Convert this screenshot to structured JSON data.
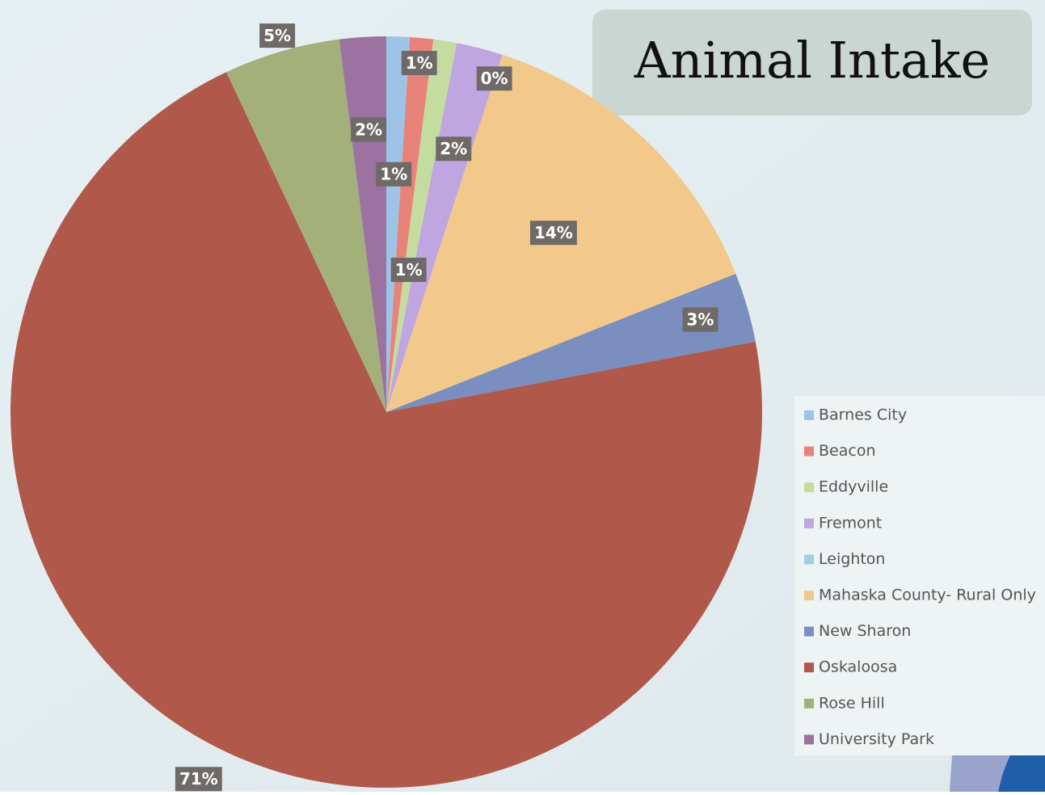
{
  "chart_data": {
    "type": "pie",
    "title": "Animal Intake",
    "categories": [
      "Barnes City",
      "Beacon",
      "Eddyville",
      "Fremont",
      "Leighton",
      "Mahaska County- Rural Only",
      "New Sharon",
      "Oskaloosa",
      "Rose Hill",
      "University Park"
    ],
    "values": [
      1,
      1,
      1,
      2,
      0,
      14,
      3,
      71,
      5,
      2
    ],
    "value_labels": [
      "1%",
      "1%",
      "1%",
      "2%",
      "0%",
      "14%",
      "3%",
      "71%",
      "5%",
      "2%"
    ],
    "colors": [
      "#9dc3e6",
      "#e8837a",
      "#c5dca0",
      "#c0a6e0",
      "#9fd0e0",
      "#f2c98a",
      "#7a8fbf",
      "#b0584a",
      "#a4b07a",
      "#9b72a0"
    ],
    "legend": "right"
  }
}
